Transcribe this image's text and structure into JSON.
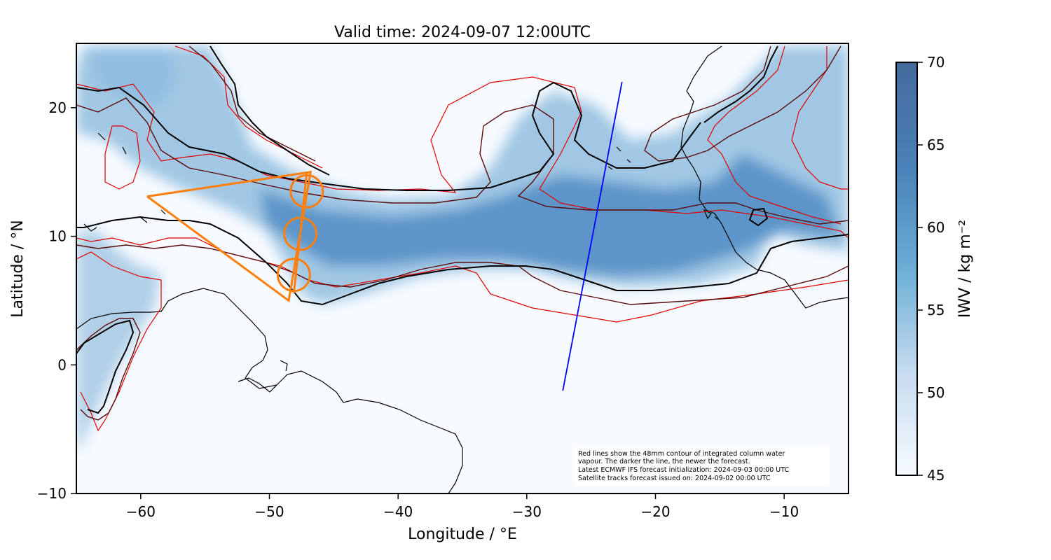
{
  "title": "Valid time: 2024-09-07 12:00UTC",
  "x_axis": {
    "label": "Longitude / °E",
    "range": [
      -65,
      -5
    ],
    "ticks": [
      {
        "value": -60,
        "label": "−60"
      },
      {
        "value": -50,
        "label": "−50"
      },
      {
        "value": -40,
        "label": "−40"
      },
      {
        "value": -30,
        "label": "−30"
      },
      {
        "value": -20,
        "label": "−20"
      },
      {
        "value": -10,
        "label": "−10"
      }
    ]
  },
  "y_axis": {
    "label": "Latitude / °N",
    "range": [
      -10,
      25
    ],
    "ticks": [
      {
        "value": -10,
        "label": "−10"
      },
      {
        "value": 0,
        "label": "0"
      },
      {
        "value": 10,
        "label": "10"
      },
      {
        "value": 20,
        "label": "20"
      }
    ]
  },
  "colorbar": {
    "label": "IWV / kg m⁻²",
    "range": [
      45,
      70
    ],
    "colors": [
      "#f7fbff",
      "#c6dbef",
      "#6baed6",
      "#4a80b8",
      "#456b9c"
    ],
    "ticks": [
      {
        "value": 45,
        "label": "45"
      },
      {
        "value": 50,
        "label": "50"
      },
      {
        "value": 55,
        "label": "55"
      },
      {
        "value": 60,
        "label": "60"
      },
      {
        "value": 65,
        "label": "65"
      },
      {
        "value": 70,
        "label": "70"
      }
    ]
  },
  "annotation": {
    "lines": [
      "Red lines show the 48mm contour of integrated column water",
      "vapour. The darker the line, the newer the forecast.",
      "Latest ECMWF IFS forecast initialization: 2024-09-03 00:00 UTC",
      "Satellite tracks forecast issued on: 2024-09-02 00:00 UTC"
    ]
  },
  "flight_track": {
    "color": "#ff7f0e",
    "points": [
      [
        -59.5,
        13.1
      ],
      [
        -46.8,
        15.0
      ],
      [
        -48.5,
        5.0
      ],
      [
        -59.5,
        13.1
      ]
    ],
    "circles": [
      {
        "lon": -47.1,
        "lat": 13.5,
        "r_deg": 1.25
      },
      {
        "lon": -47.6,
        "lat": 10.2,
        "r_deg": 1.25
      },
      {
        "lon": -48.1,
        "lat": 7.0,
        "r_deg": 1.25
      }
    ]
  },
  "satellite_track": {
    "color": "#0000ff",
    "points": [
      [
        -27.2,
        -2.0
      ],
      [
        -22.6,
        22.0
      ]
    ]
  },
  "contour_colors": {
    "newest": "#000000",
    "middle": "#5a0a0a",
    "oldest": "#e00000"
  }
}
